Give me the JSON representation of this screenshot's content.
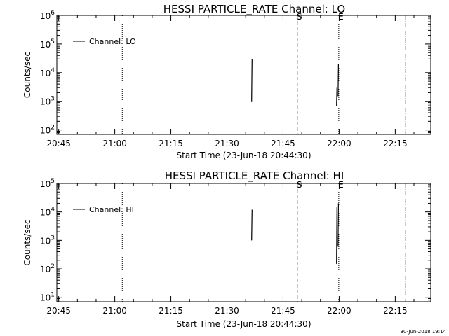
{
  "footer": {
    "timestamp": "30-Jun-2018 19:14"
  },
  "chart_data": [
    {
      "type": "line",
      "title": "HESSI PARTICLE_RATE Channel: LO",
      "xlabel": "Start Time (23-Jun-18 20:44:30)",
      "ylabel": "Counts/sec",
      "x_ticks": [
        "20:45",
        "21:00",
        "21:15",
        "21:30",
        "21:45",
        "22:00",
        "22:15"
      ],
      "x_ticks_minutes": [
        0.5,
        15.5,
        30.5,
        45.5,
        60.5,
        75.5,
        90.5
      ],
      "xlim_minutes": [
        0,
        100
      ],
      "y_scale": "log",
      "y_ticks": [
        {
          "base": "10",
          "exp": "2",
          "value": 100
        },
        {
          "base": "10",
          "exp": "3",
          "value": 1000
        },
        {
          "base": "10",
          "exp": "4",
          "value": 10000
        },
        {
          "base": "10",
          "exp": "5",
          "value": 100000
        },
        {
          "base": "10",
          "exp": "6",
          "value": 1000000
        }
      ],
      "ylim": [
        70,
        1000000
      ],
      "legend": {
        "label": "Channel: LO",
        "position": "top-left"
      },
      "series": [
        {
          "name": "Channel: LO",
          "segments": [
            {
              "x": 52.1,
              "y_low": 1000,
              "y_high": 30000
            },
            {
              "x": 74.8,
              "y_low": 700,
              "y_high": 3000
            },
            {
              "x": 75.2,
              "y_low": 1500,
              "y_high": 20000
            }
          ]
        }
      ],
      "vlines": [
        {
          "x": 17.5,
          "style": "dotted",
          "label": ""
        },
        {
          "x": 64.3,
          "style": "dashed",
          "label": "S"
        },
        {
          "x": 75.4,
          "style": "dotted",
          "label": "E"
        },
        {
          "x": 93.3,
          "style": "dashdot",
          "label": ""
        }
      ]
    },
    {
      "type": "line",
      "title": "HESSI PARTICLE_RATE Channel: HI",
      "xlabel": "Start Time (23-Jun-18 20:44:30)",
      "ylabel": "Counts/sec",
      "x_ticks": [
        "20:45",
        "21:00",
        "21:15",
        "21:30",
        "21:45",
        "22:00",
        "22:15"
      ],
      "x_ticks_minutes": [
        0.5,
        15.5,
        30.5,
        45.5,
        60.5,
        75.5,
        90.5
      ],
      "xlim_minutes": [
        0,
        100
      ],
      "y_scale": "log",
      "y_ticks": [
        {
          "base": "10",
          "exp": "1",
          "value": 10
        },
        {
          "base": "10",
          "exp": "2",
          "value": 100
        },
        {
          "base": "10",
          "exp": "3",
          "value": 1000
        },
        {
          "base": "10",
          "exp": "4",
          "value": 10000
        },
        {
          "base": "10",
          "exp": "5",
          "value": 100000
        }
      ],
      "ylim": [
        7,
        100000
      ],
      "legend": {
        "label": "Channel: HI",
        "position": "top-left"
      },
      "series": [
        {
          "name": "Channel: HI",
          "segments": [
            {
              "x": 52.1,
              "y_low": 1000,
              "y_high": 12000
            },
            {
              "x": 74.8,
              "y_low": 150,
              "y_high": 15000
            },
            {
              "x": 75.2,
              "y_low": 600,
              "y_high": 20000
            }
          ]
        }
      ],
      "vlines": [
        {
          "x": 17.5,
          "style": "dotted",
          "label": ""
        },
        {
          "x": 64.3,
          "style": "dashed",
          "label": "S"
        },
        {
          "x": 75.4,
          "style": "dotted",
          "label": "E"
        },
        {
          "x": 93.3,
          "style": "dashdot",
          "label": ""
        }
      ]
    }
  ]
}
